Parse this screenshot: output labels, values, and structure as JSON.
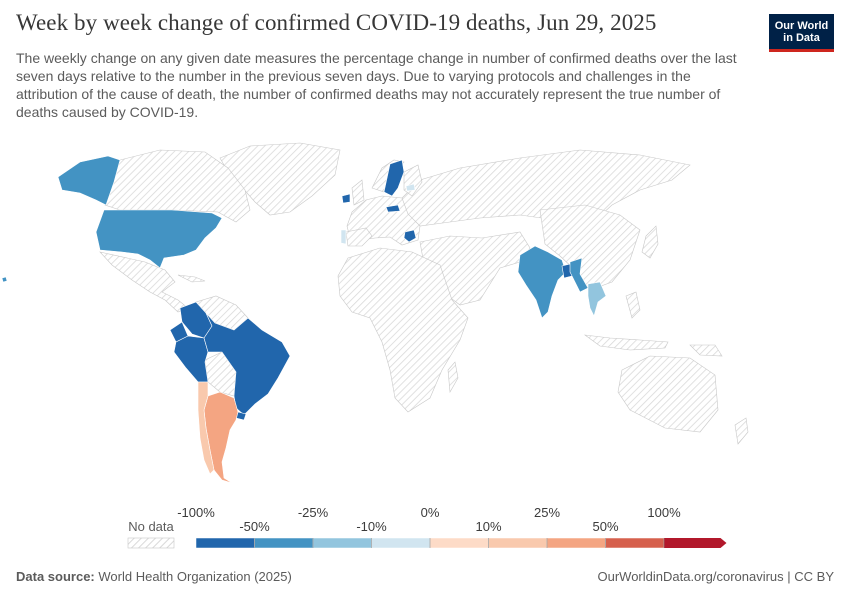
{
  "header": {
    "title": "Week by week change of confirmed COVID-19 deaths, Jun 29, 2025",
    "subtitle": "The weekly change on any given date measures the percentage change in number of confirmed deaths over the last seven days relative to the number in the previous seven days. Due to varying protocols and challenges in the attribution of the cause of death, the number of confirmed deaths may not accurately represent the true number of deaths caused by COVID-19.",
    "logo_text": "Our World in Data"
  },
  "legend": {
    "no_data_label": "No data",
    "tick_labels": [
      "-100%",
      "-50%",
      "-25%",
      "-10%",
      "0%",
      "10%",
      "25%",
      "50%",
      "100%"
    ],
    "bin_colors": [
      "#2166ac",
      "#4393c3",
      "#92c5de",
      "#d1e5f0",
      "#fddbc7",
      "#f9c9ad",
      "#f4a582",
      "#d6604d",
      "#b2182b"
    ],
    "no_data_color": "#e8e8e8"
  },
  "map_data": {
    "regions": [
      {
        "name": "United States",
        "bin": "-50% to -25%",
        "color": "#4393c3"
      },
      {
        "name": "Brazil",
        "bin": "-100% to -50%",
        "color": "#2166ac"
      },
      {
        "name": "Peru",
        "bin": "-100% to -50%",
        "color": "#2166ac"
      },
      {
        "name": "Colombia",
        "bin": "-100% to -50%",
        "color": "#2166ac"
      },
      {
        "name": "Ecuador",
        "bin": "-100% to -50%",
        "color": "#2166ac"
      },
      {
        "name": "Uruguay",
        "bin": "-100% to -50%",
        "color": "#2166ac"
      },
      {
        "name": "Argentina",
        "bin": "25% to 50%",
        "color": "#f4a582"
      },
      {
        "name": "Chile",
        "bin": "10% to 25%",
        "color": "#f9c9ad"
      },
      {
        "name": "Sweden",
        "bin": "-100% to -50%",
        "color": "#2166ac"
      },
      {
        "name": "Ireland",
        "bin": "-100% to -50%",
        "color": "#2166ac"
      },
      {
        "name": "Greece",
        "bin": "-100% to -50%",
        "color": "#2166ac"
      },
      {
        "name": "Austria",
        "bin": "-100% to -50%",
        "color": "#2166ac"
      },
      {
        "name": "Portugal",
        "bin": "-10% to 0%",
        "color": "#d1e5f0"
      },
      {
        "name": "India",
        "bin": "-50% to -25%",
        "color": "#4393c3"
      },
      {
        "name": "Bangladesh",
        "bin": "-100% to -50%",
        "color": "#2166ac"
      },
      {
        "name": "Myanmar",
        "bin": "-50% to -25%",
        "color": "#4393c3"
      },
      {
        "name": "Thailand",
        "bin": "-25% to -10%",
        "color": "#92c5de"
      },
      {
        "name": "Latvia",
        "bin": "-10% to 0%",
        "color": "#d1e5f0"
      }
    ]
  },
  "footer": {
    "source_label": "Data source:",
    "source_value": "World Health Organization (2025)",
    "url_license": "OurWorldinData.org/coronavirus | CC BY"
  }
}
